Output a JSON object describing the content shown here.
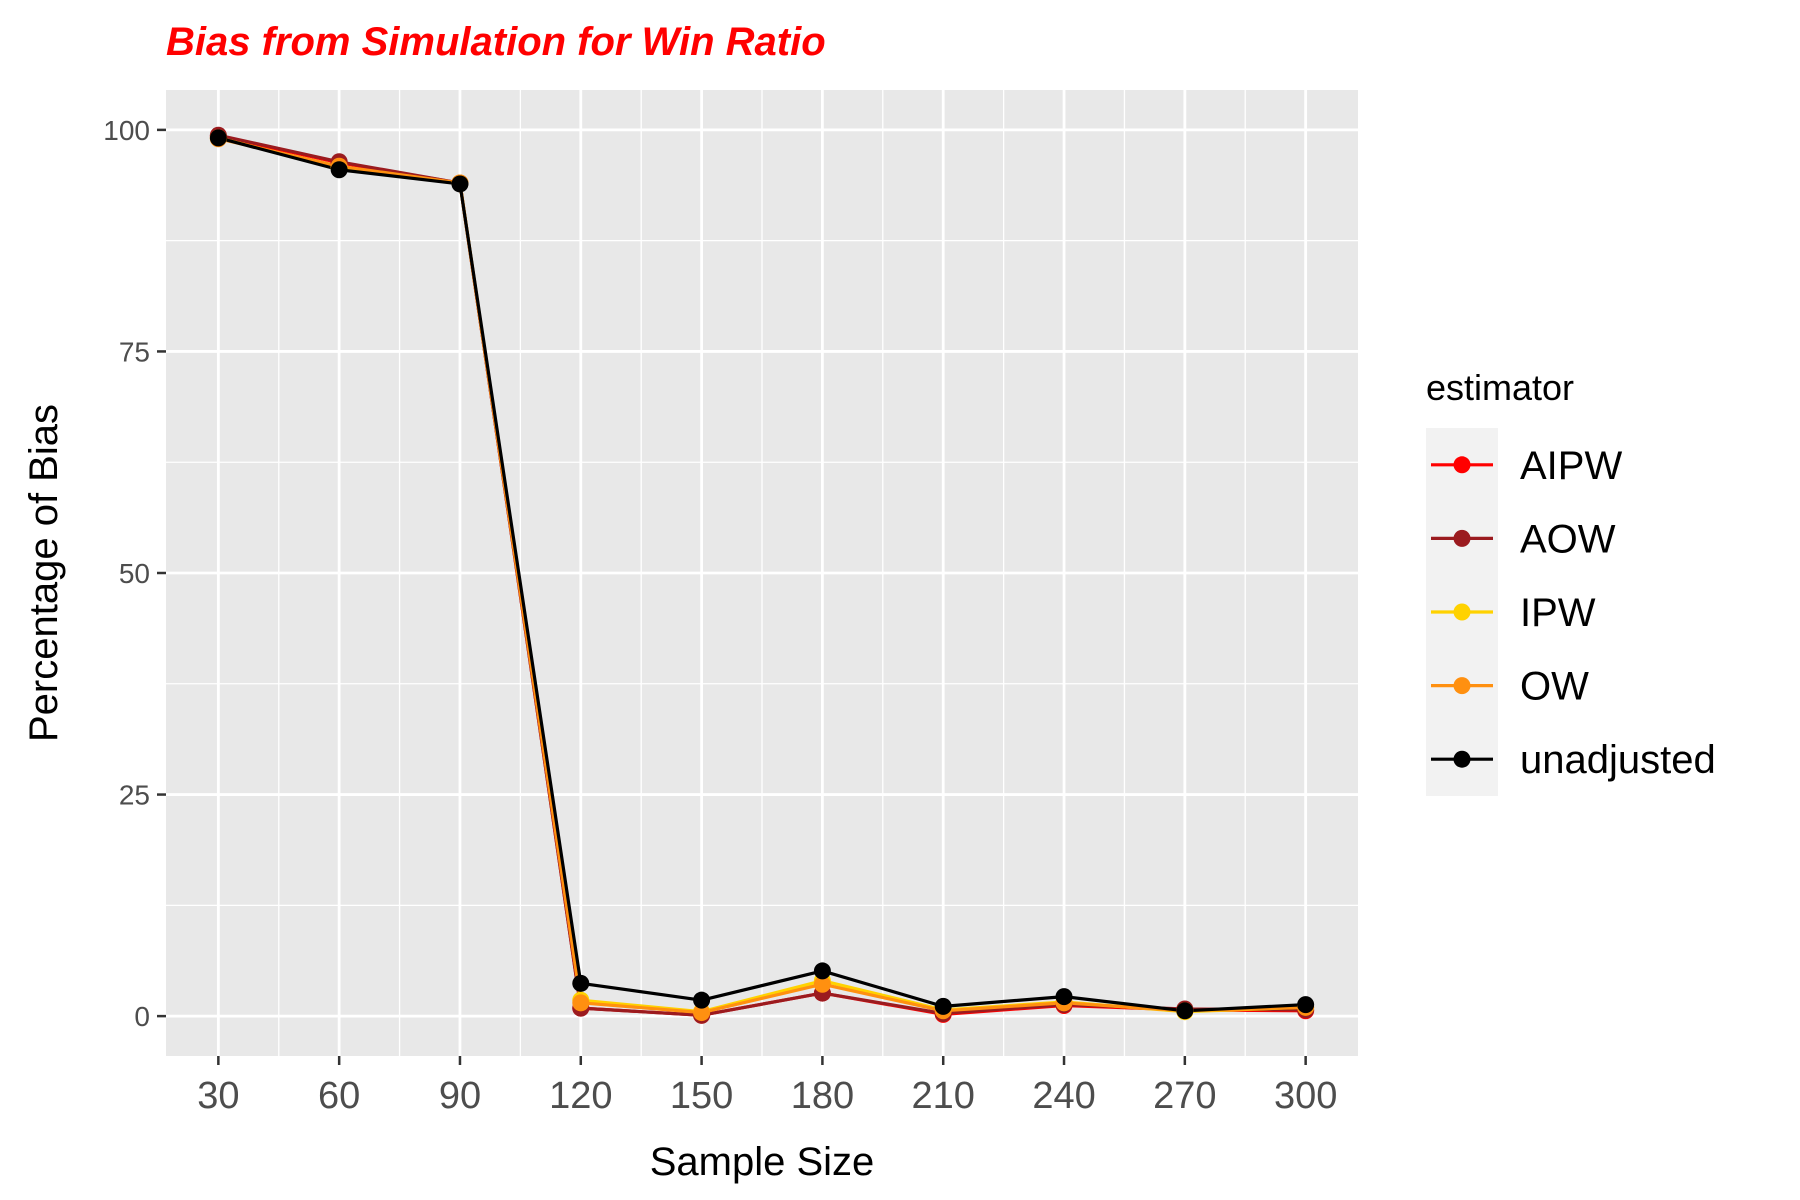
{
  "chart_data": {
    "type": "line",
    "title": "Bias from Simulation for Win Ratio",
    "xlabel": "Sample Size",
    "ylabel": "Percentage of Bias",
    "x": [
      30,
      60,
      90,
      120,
      150,
      180,
      210,
      240,
      270,
      300
    ],
    "xlim": [
      17,
      313
    ],
    "ylim": [
      -4.5,
      104.5
    ],
    "yticks": [
      0,
      25,
      50,
      75,
      100
    ],
    "grid": true,
    "legend_title": "estimator",
    "legend_position": "right",
    "panel_background": "#e8e8e8",
    "series": [
      {
        "name": "AIPW",
        "color": "#ff0000",
        "values": [
          99.3,
          96.3,
          94.0,
          0.9,
          0.1,
          2.6,
          0.2,
          1.2,
          0.7,
          0.6
        ]
      },
      {
        "name": "AOW",
        "color": "#9b1b1f",
        "values": [
          99.4,
          96.4,
          94.0,
          0.9,
          0.1,
          2.6,
          0.3,
          1.3,
          0.8,
          0.7
        ]
      },
      {
        "name": "IPW",
        "color": "#ffd200",
        "values": [
          99.1,
          95.7,
          94.0,
          1.8,
          0.5,
          4.0,
          0.7,
          1.6,
          0.5,
          1.0
        ]
      },
      {
        "name": "OW",
        "color": "#ff9010",
        "values": [
          99.0,
          95.9,
          94.0,
          1.5,
          0.4,
          3.6,
          0.6,
          1.5,
          0.6,
          1.0
        ]
      },
      {
        "name": "unadjusted",
        "color": "#000000",
        "values": [
          99.1,
          95.5,
          93.9,
          3.7,
          1.8,
          5.1,
          1.1,
          2.2,
          0.6,
          1.3
        ]
      }
    ]
  },
  "colors": {
    "title": "#ff0000",
    "panel": "#e8e8e8",
    "grid": "#ffffff"
  }
}
